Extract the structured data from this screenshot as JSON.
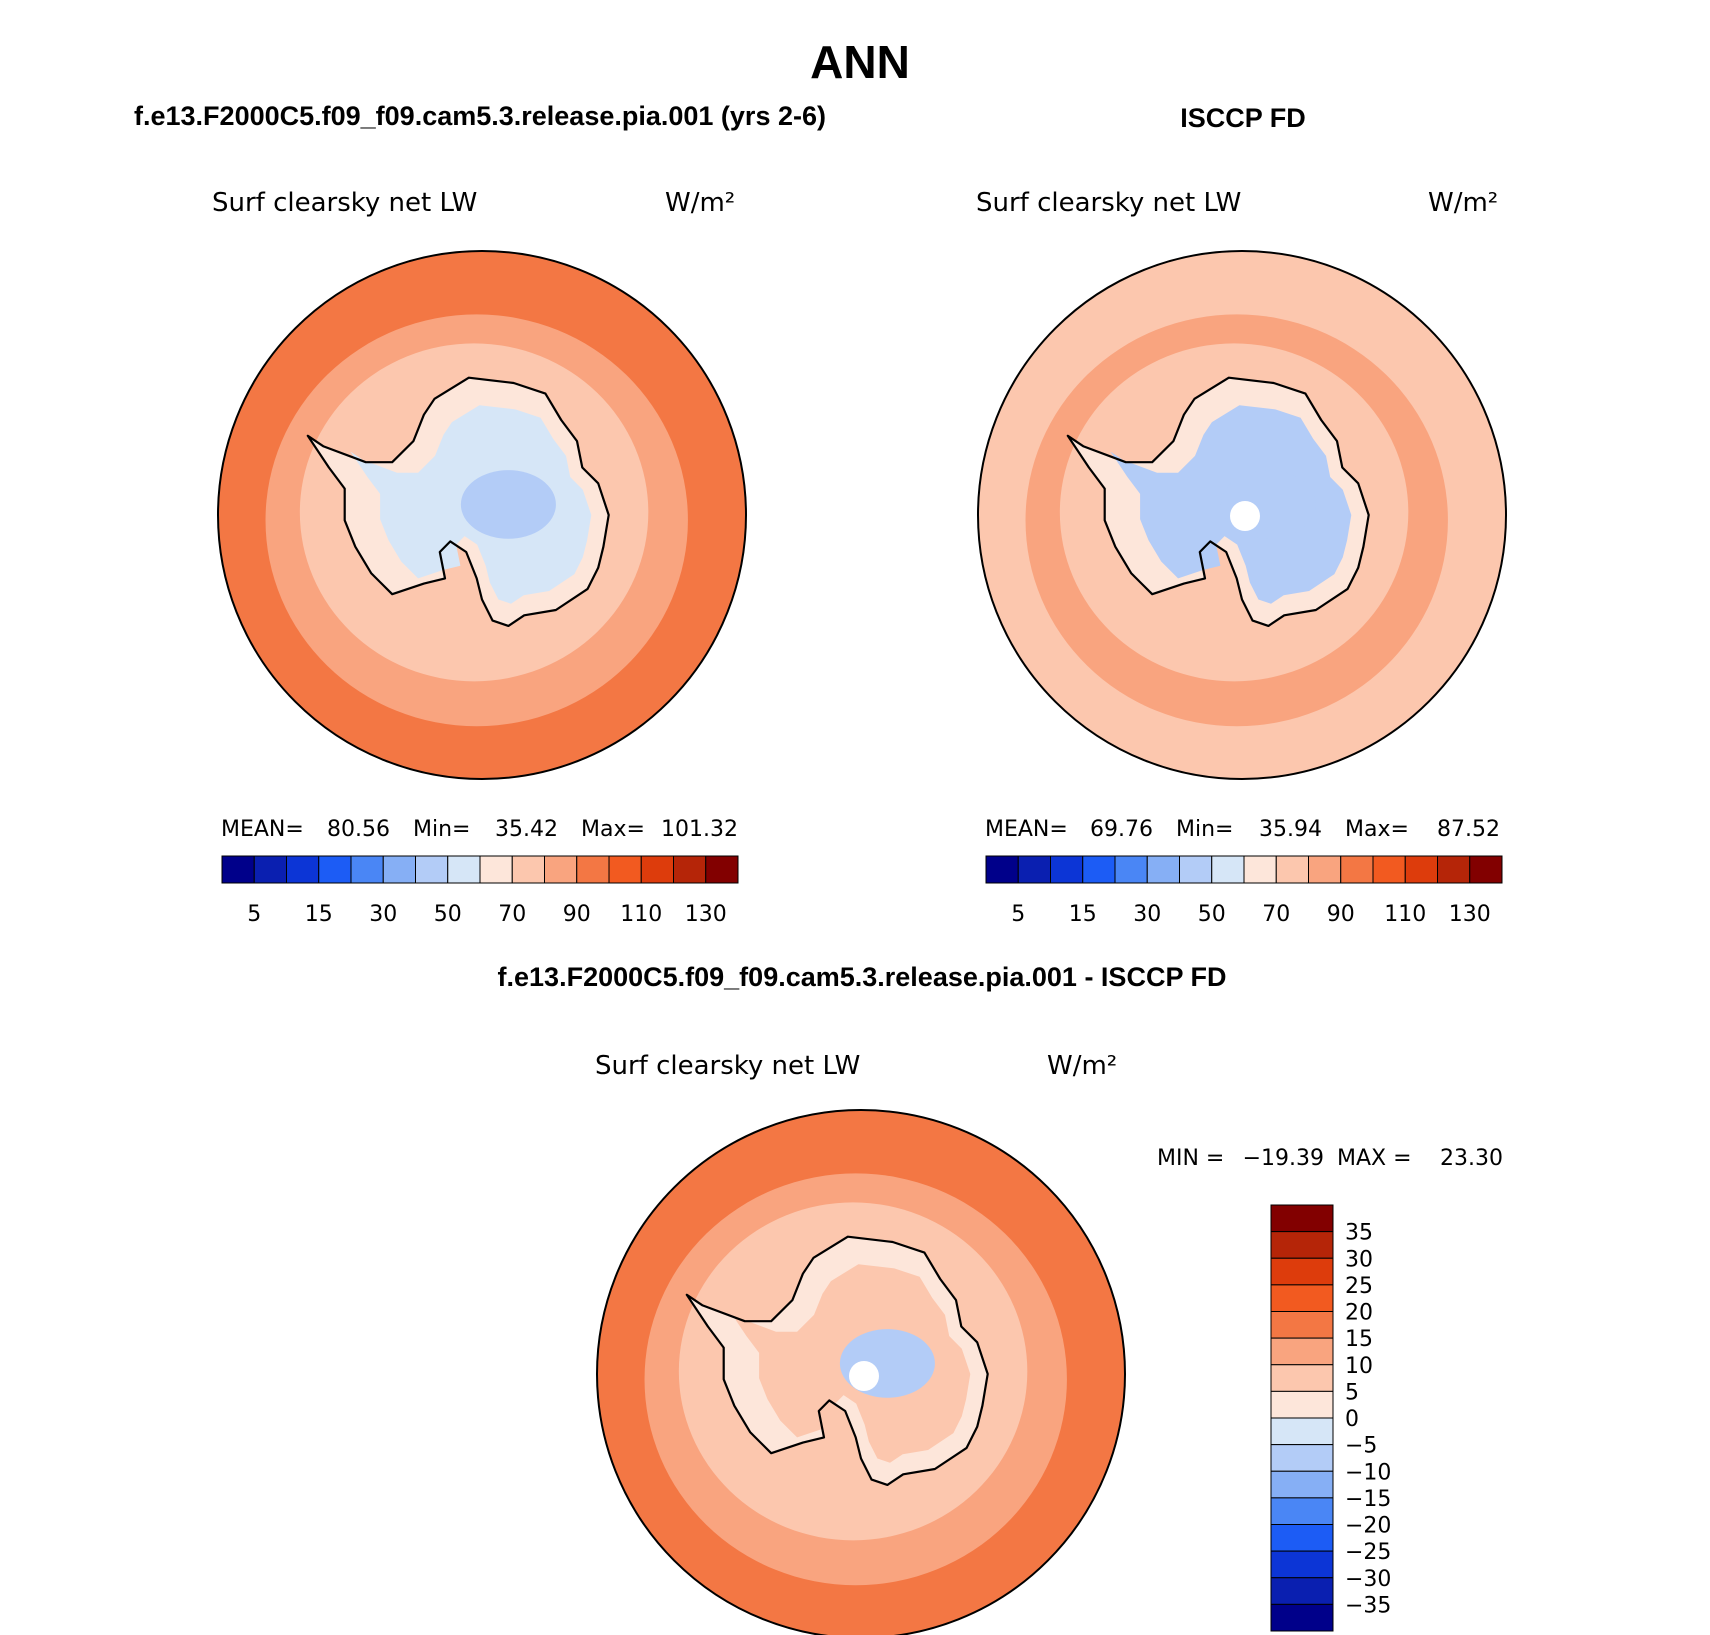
{
  "figure": {
    "title": "ANN",
    "colors": {
      "seq": [
        "#00008a",
        "#0a1fb0",
        "#0c35d6",
        "#1c5cf5",
        "#4a86f5",
        "#86aff5",
        "#b3ccf7",
        "#d6e6f7",
        "#fde6da",
        "#fcc7ae",
        "#f9a47f",
        "#f37744",
        "#f25a20",
        "#dd3c0c",
        "#b52508",
        "#820000"
      ],
      "diff": [
        "#00008a",
        "#0a1fb0",
        "#0c35d6",
        "#1c5cf5",
        "#4a86f5",
        "#86aff5",
        "#b3ccf7",
        "#d6e6f7",
        "#fde6da",
        "#fcc7ae",
        "#f9a47f",
        "#f37744",
        "#f25a20",
        "#dd3c0c",
        "#b52508",
        "#820000"
      ]
    }
  },
  "chart_data": [
    {
      "type": "heatmap",
      "panel_title": "f.e13.F2000C5.f09_f09.cam5.3.release.pia.001 (yrs 2-6)",
      "variable": "Surf clearsky net LW",
      "units": "W/m²",
      "projection": "south-polar-stereographic",
      "stats": {
        "mean_label": "MEAN=",
        "mean": "80.56",
        "min_label": "Min=",
        "min": "35.42",
        "max_label": "Max=",
        "max": "101.32"
      },
      "colorbar_ticks": [
        "5",
        "15",
        "30",
        "50",
        "70",
        "90",
        "110",
        "130"
      ],
      "field": {
        "ocean": 95,
        "sea_ice_outer": 80,
        "sea_ice_inner": 72,
        "coast": 64,
        "interior": 52,
        "deep_interior": 48
      }
    },
    {
      "type": "heatmap",
      "panel_title": "ISCCP FD",
      "variable": "Surf clearsky net LW",
      "units": "W/m²",
      "projection": "south-polar-stereographic",
      "stats": {
        "mean_label": "MEAN=",
        "mean": "69.76",
        "min_label": "Min=",
        "min": "35.94",
        "max_label": "Max=",
        "max": "87.52"
      },
      "colorbar_ticks": [
        "5",
        "15",
        "30",
        "50",
        "70",
        "90",
        "110",
        "130"
      ],
      "field": {
        "ocean": 76,
        "sea_ice_outer": 80,
        "sea_ice_inner": 72,
        "coast": 64,
        "interior": 48,
        "deep_interior": 40
      }
    },
    {
      "type": "heatmap",
      "panel_title": "f.e13.F2000C5.f09_f09.cam5.3.release.pia.001 - ISCCP FD",
      "variable": "Surf clearsky net LW",
      "units": "W/m²",
      "projection": "south-polar-stereographic",
      "stats": {
        "min_label": "MIN =",
        "min": "−19.39",
        "max_label": "MAX =",
        "max": "23.30"
      },
      "colorbar_ticks": [
        "35",
        "30",
        "25",
        "20",
        "15",
        "10",
        "5",
        "0",
        "−5",
        "−10",
        "−15",
        "−20",
        "−25",
        "−30",
        "−35"
      ],
      "field": {
        "ocean": 18,
        "sea_ice_outer": 12,
        "sea_ice_inner": 8,
        "coast": 3,
        "interior": 5,
        "deep_interior": -8
      }
    }
  ]
}
